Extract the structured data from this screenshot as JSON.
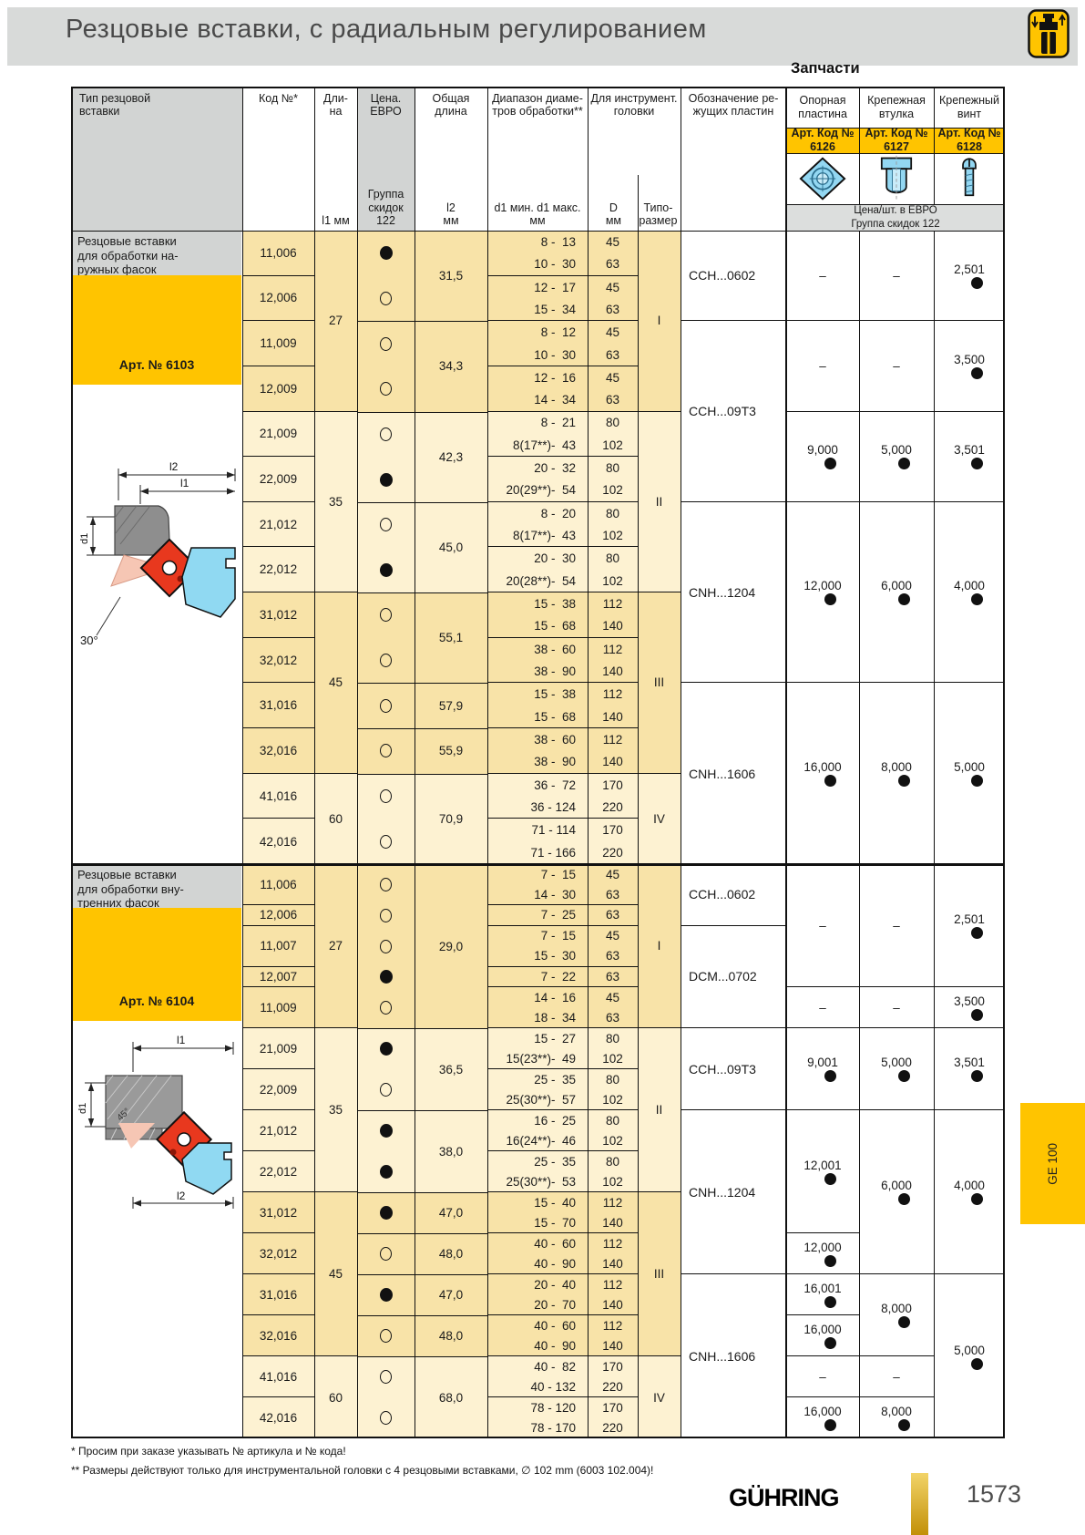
{
  "page": {
    "title": "Резцовые вставки, с радиальным регулированием",
    "spare_parts": "Запчасти",
    "side_tab": "GE 100",
    "footnote1": "* Просим при заказе указывать № артикула и № кода!",
    "footnote2": "** Размеры действуют только для инструментальной головки с 4 резцовыми вставками, ∅ 102 mm (6003 102.004)!",
    "brand": "GÜHRING",
    "page_number": "1573"
  },
  "header": {
    "col_type": "Тип резцовой\nвставки",
    "col_code": "Код №*",
    "col_len": "Дли-\nна",
    "col_price": "Цена.\nЕВРО",
    "col_total": "Общая\nдлина",
    "col_range": "Диапазон диаме-\nтров обработки**",
    "col_head": "Для инструмент.\nголовки",
    "col_insert": "Обозначение ре-\nжущих пластин",
    "sub_l1": "l1 мм",
    "sub_discount": "Группа\nскидок\n122",
    "sub_l2": "l2\nмм",
    "sub_range": "d1 мин.  d1 макс.\nмм",
    "sub_D": "D\nмм",
    "sub_size": "Типо-\nразмер",
    "price_band": "Цена/шт. в ЕВРО\nГруппа скидок 122",
    "spares": [
      {
        "title": "Опорная\nпластина",
        "art": "Арт. Код №",
        "code": "6126"
      },
      {
        "title": "Крепежная\nвтулка",
        "art": "Арт. Код №",
        "code": "6127"
      },
      {
        "title": "Крепежный\nвинт",
        "art": "Арт. Код №",
        "code": "6128"
      }
    ]
  },
  "sections": [
    {
      "desc": "Резцовые вставки\nдля обработки на-\nружных фасок",
      "art": "Арт. № 6103",
      "drawing": {
        "l1": "l1",
        "l2": "l2",
        "d1": "d1",
        "angle": "30°"
      },
      "rows": [
        {
          "code": "11,006",
          "dot": "filled",
          "lines": [
            [
              "8 -  13",
              "45"
            ],
            [
              "10 -  30",
              "63"
            ]
          ]
        },
        {
          "code": "12,006",
          "dot": "open",
          "lines": [
            [
              "12 -  17",
              "45"
            ],
            [
              "15 -  34",
              "63"
            ]
          ]
        },
        {
          "code": "11,009",
          "dot": "open",
          "lines": [
            [
              "8 -  12",
              "45"
            ],
            [
              "10 -  30",
              "63"
            ]
          ]
        },
        {
          "code": "12,009",
          "dot": "open",
          "lines": [
            [
              "12 -  16",
              "45"
            ],
            [
              "14 -  34",
              "63"
            ]
          ]
        },
        {
          "code": "21,009",
          "dot": "open",
          "lines": [
            [
              "8 -  21",
              "80"
            ],
            [
              "8(17**)-  43",
              "102"
            ]
          ]
        },
        {
          "code": "22,009",
          "dot": "filled",
          "lines": [
            [
              "20 -  32",
              "80"
            ],
            [
              "20(29**)-  54",
              "102"
            ]
          ]
        },
        {
          "code": "21,012",
          "dot": "open",
          "lines": [
            [
              "8 -  20",
              "80"
            ],
            [
              "8(17**)-  43",
              "102"
            ]
          ]
        },
        {
          "code": "22,012",
          "dot": "filled",
          "lines": [
            [
              "20 -  30",
              "80"
            ],
            [
              "20(28**)-  54",
              "102"
            ]
          ]
        },
        {
          "code": "31,012",
          "dot": "open",
          "lines": [
            [
              "15 -  38",
              "112"
            ],
            [
              "15 -  68",
              "140"
            ]
          ]
        },
        {
          "code": "32,012",
          "dot": "open",
          "lines": [
            [
              "38 -  60",
              "112"
            ],
            [
              "38 -  90",
              "140"
            ]
          ]
        },
        {
          "code": "31,016",
          "dot": "open",
          "lines": [
            [
              "15 -  38",
              "112"
            ],
            [
              "15 -  68",
              "140"
            ]
          ]
        },
        {
          "code": "32,016",
          "dot": "open",
          "lines": [
            [
              "38 -  60",
              "112"
            ],
            [
              "38 -  90",
              "140"
            ]
          ]
        },
        {
          "code": "41,016",
          "dot": "open",
          "lines": [
            [
              "36 -  72",
              "170"
            ],
            [
              "36 - 124",
              "220"
            ]
          ]
        },
        {
          "code": "42,016",
          "dot": "open",
          "lines": [
            [
              "71 - 114",
              "170"
            ],
            [
              "71 - 166",
              "220"
            ]
          ]
        }
      ],
      "l1_groups": [
        {
          "v": "27",
          "a": 0,
          "b": 3
        },
        {
          "v": "35",
          "a": 4,
          "b": 7
        },
        {
          "v": "45",
          "a": 8,
          "b": 11
        },
        {
          "v": "60",
          "a": 12,
          "b": 13
        }
      ],
      "l2_groups": [
        {
          "v": "31,5",
          "a": 0,
          "b": 1
        },
        {
          "v": "34,3",
          "a": 2,
          "b": 3
        },
        {
          "v": "42,3",
          "a": 4,
          "b": 5
        },
        {
          "v": "45,0",
          "a": 6,
          "b": 7
        },
        {
          "v": "55,1",
          "a": 8,
          "b": 9
        },
        {
          "v": "57,9",
          "a": 10,
          "b": 10
        },
        {
          "v": "55,9",
          "a": 11,
          "b": 11
        },
        {
          "v": "70,9",
          "a": 12,
          "b": 13
        }
      ],
      "size_groups": [
        {
          "v": "I",
          "a": 0,
          "b": 3
        },
        {
          "v": "II",
          "a": 4,
          "b": 7
        },
        {
          "v": "III",
          "a": 8,
          "b": 11
        },
        {
          "v": "IV",
          "a": 12,
          "b": 13
        }
      ],
      "insert_groups": [
        {
          "v": "CCH...0602",
          "a": 0,
          "b": 1
        },
        {
          "v": "CCH...09T3",
          "a": 2,
          "b": 5
        },
        {
          "v": "CNH...1204",
          "a": 6,
          "b": 9
        },
        {
          "v": "CNH...1606",
          "a": 10,
          "b": 13
        }
      ],
      "price_cells": [
        {
          "c": 0,
          "t": "–",
          "d": 0,
          "a": 0,
          "b": 1
        },
        {
          "c": 1,
          "t": "–",
          "d": 0,
          "a": 0,
          "b": 1
        },
        {
          "c": 2,
          "t": "2,501",
          "d": 1,
          "a": 0,
          "b": 1
        },
        {
          "c": 0,
          "t": "–",
          "d": 0,
          "a": 2,
          "b": 3
        },
        {
          "c": 1,
          "t": "–",
          "d": 0,
          "a": 2,
          "b": 3
        },
        {
          "c": 2,
          "t": "3,500",
          "d": 1,
          "a": 2,
          "b": 3
        },
        {
          "c": 0,
          "t": "9,000",
          "d": 1,
          "a": 4,
          "b": 5
        },
        {
          "c": 1,
          "t": "5,000",
          "d": 1,
          "a": 4,
          "b": 5
        },
        {
          "c": 2,
          "t": "3,501",
          "d": 1,
          "a": 4,
          "b": 5
        },
        {
          "c": 0,
          "t": "12,000",
          "d": 1,
          "a": 6,
          "b": 9
        },
        {
          "c": 1,
          "t": "6,000",
          "d": 1,
          "a": 6,
          "b": 9
        },
        {
          "c": 2,
          "t": "4,000",
          "d": 1,
          "a": 6,
          "b": 9
        },
        {
          "c": 0,
          "t": "16,000",
          "d": 1,
          "a": 10,
          "b": 13
        },
        {
          "c": 1,
          "t": "8,000",
          "d": 1,
          "a": 10,
          "b": 13
        },
        {
          "c": 2,
          "t": "5,000",
          "d": 1,
          "a": 10,
          "b": 13
        }
      ]
    },
    {
      "desc": "Резцовые вставки\nдля обработки вну-\nтренних фасок",
      "art": "Арт. № 6104",
      "drawing": {
        "l1": "l1",
        "l2": "l2",
        "d1": "d1",
        "angle": "45°"
      },
      "rows": [
        {
          "code": "11,006",
          "dot": "open",
          "lines": [
            [
              "7 -  15",
              "45"
            ],
            [
              "14 -  30",
              "63"
            ]
          ]
        },
        {
          "code": "12,006",
          "dot": "open",
          "lines": [
            [
              "7 -  25",
              "63"
            ]
          ]
        },
        {
          "code": "11,007",
          "dot": "open",
          "lines": [
            [
              "7 -  15",
              "45"
            ],
            [
              "15 -  30",
              "63"
            ]
          ]
        },
        {
          "code": "12,007",
          "dot": "filled",
          "lines": [
            [
              "7 -  22",
              "63"
            ]
          ]
        },
        {
          "code": "11,009",
          "dot": "open",
          "lines": [
            [
              "14 -  16",
              "45"
            ],
            [
              "18 -  34",
              "63"
            ]
          ]
        },
        {
          "code": "21,009",
          "dot": "filled",
          "lines": [
            [
              "15 -  27",
              "80"
            ],
            [
              "15(23**)-  49",
              "102"
            ]
          ]
        },
        {
          "code": "22,009",
          "dot": "open",
          "lines": [
            [
              "25 -  35",
              "80"
            ],
            [
              "25(30**)-  57",
              "102"
            ]
          ]
        },
        {
          "code": "21,012",
          "dot": "filled",
          "lines": [
            [
              "16 -  25",
              "80"
            ],
            [
              "16(24**)-  46",
              "102"
            ]
          ]
        },
        {
          "code": "22,012",
          "dot": "filled",
          "lines": [
            [
              "25 -  35",
              "80"
            ],
            [
              "25(30**)-  53",
              "102"
            ]
          ]
        },
        {
          "code": "31,012",
          "dot": "filled",
          "lines": [
            [
              "15 -  40",
              "112"
            ],
            [
              "15 -  70",
              "140"
            ]
          ]
        },
        {
          "code": "32,012",
          "dot": "open",
          "lines": [
            [
              "40 -  60",
              "112"
            ],
            [
              "40 -  90",
              "140"
            ]
          ]
        },
        {
          "code": "31,016",
          "dot": "filled",
          "lines": [
            [
              "20 -  40",
              "112"
            ],
            [
              "20 -  70",
              "140"
            ]
          ]
        },
        {
          "code": "32,016",
          "dot": "open",
          "lines": [
            [
              "40 -  60",
              "112"
            ],
            [
              "40 -  90",
              "140"
            ]
          ]
        },
        {
          "code": "41,016",
          "dot": "open",
          "lines": [
            [
              "40 -  82",
              "170"
            ],
            [
              "40 - 132",
              "220"
            ]
          ]
        },
        {
          "code": "42,016",
          "dot": "open",
          "lines": [
            [
              "78 - 120",
              "170"
            ],
            [
              "78 - 170",
              "220"
            ]
          ]
        }
      ],
      "l1_groups": [
        {
          "v": "27",
          "a": 0,
          "b": 4
        },
        {
          "v": "35",
          "a": 5,
          "b": 8
        },
        {
          "v": "45",
          "a": 9,
          "b": 12
        },
        {
          "v": "60",
          "a": 13,
          "b": 14
        }
      ],
      "l2_groups": [
        {
          "v": "29,0",
          "a": 0,
          "b": 4
        },
        {
          "v": "36,5",
          "a": 5,
          "b": 6
        },
        {
          "v": "38,0",
          "a": 7,
          "b": 8
        },
        {
          "v": "47,0",
          "a": 9,
          "b": 9
        },
        {
          "v": "48,0",
          "a": 10,
          "b": 10
        },
        {
          "v": "47,0",
          "a": 11,
          "b": 11
        },
        {
          "v": "48,0",
          "a": 12,
          "b": 12
        },
        {
          "v": "68,0",
          "a": 13,
          "b": 14
        }
      ],
      "size_groups": [
        {
          "v": "I",
          "a": 0,
          "b": 4
        },
        {
          "v": "II",
          "a": 5,
          "b": 8
        },
        {
          "v": "III",
          "a": 9,
          "b": 12
        },
        {
          "v": "IV",
          "a": 13,
          "b": 14
        }
      ],
      "insert_groups": [
        {
          "v": "CCH...0602",
          "a": 0,
          "b": 1
        },
        {
          "v": "DCM...0702",
          "a": 2,
          "b": 4
        },
        {
          "v": "CCH...09T3",
          "a": 5,
          "b": 6
        },
        {
          "v": "CNH...1204",
          "a": 7,
          "b": 10
        },
        {
          "v": "CNH...1606",
          "a": 11,
          "b": 14
        }
      ],
      "price_cells": [
        {
          "c": 0,
          "t": "–",
          "d": 0,
          "a": 0,
          "b": 3
        },
        {
          "c": 1,
          "t": "–",
          "d": 0,
          "a": 0,
          "b": 3
        },
        {
          "c": 2,
          "t": "2,501",
          "d": 1,
          "a": 0,
          "b": 3
        },
        {
          "c": 0,
          "t": "–",
          "d": 0,
          "a": 4,
          "b": 4
        },
        {
          "c": 1,
          "t": "–",
          "d": 0,
          "a": 4,
          "b": 4
        },
        {
          "c": 2,
          "t": "3,500",
          "d": 1,
          "a": 4,
          "b": 4
        },
        {
          "c": 0,
          "t": "9,001",
          "d": 1,
          "a": 5,
          "b": 6
        },
        {
          "c": 1,
          "t": "5,000",
          "d": 1,
          "a": 5,
          "b": 6
        },
        {
          "c": 2,
          "t": "3,501",
          "d": 1,
          "a": 5,
          "b": 6
        },
        {
          "c": 0,
          "t": "12,001",
          "d": 1,
          "a": 7,
          "b": 9
        },
        {
          "c": 0,
          "t": "12,000",
          "d": 1,
          "a": 10,
          "b": 10
        },
        {
          "c": 1,
          "t": "6,000",
          "d": 1,
          "a": 7,
          "b": 10
        },
        {
          "c": 2,
          "t": "4,000",
          "d": 1,
          "a": 7,
          "b": 10
        },
        {
          "c": 0,
          "t": "16,001",
          "d": 1,
          "a": 11,
          "b": 11
        },
        {
          "c": 0,
          "t": "16,000",
          "d": 1,
          "a": 12,
          "b": 12
        },
        {
          "c": 0,
          "t": "–",
          "d": 0,
          "a": 13,
          "b": 13
        },
        {
          "c": 0,
          "t": "16,000",
          "d": 1,
          "a": 14,
          "b": 14
        },
        {
          "c": 1,
          "t": "8,000",
          "d": 1,
          "a": 11,
          "b": 12
        },
        {
          "c": 1,
          "t": "–",
          "d": 0,
          "a": 13,
          "b": 13
        },
        {
          "c": 1,
          "t": "8,000",
          "d": 1,
          "a": 14,
          "b": 14
        },
        {
          "c": 2,
          "t": "5,000",
          "d": 1,
          "a": 11,
          "b": 14
        }
      ]
    }
  ]
}
